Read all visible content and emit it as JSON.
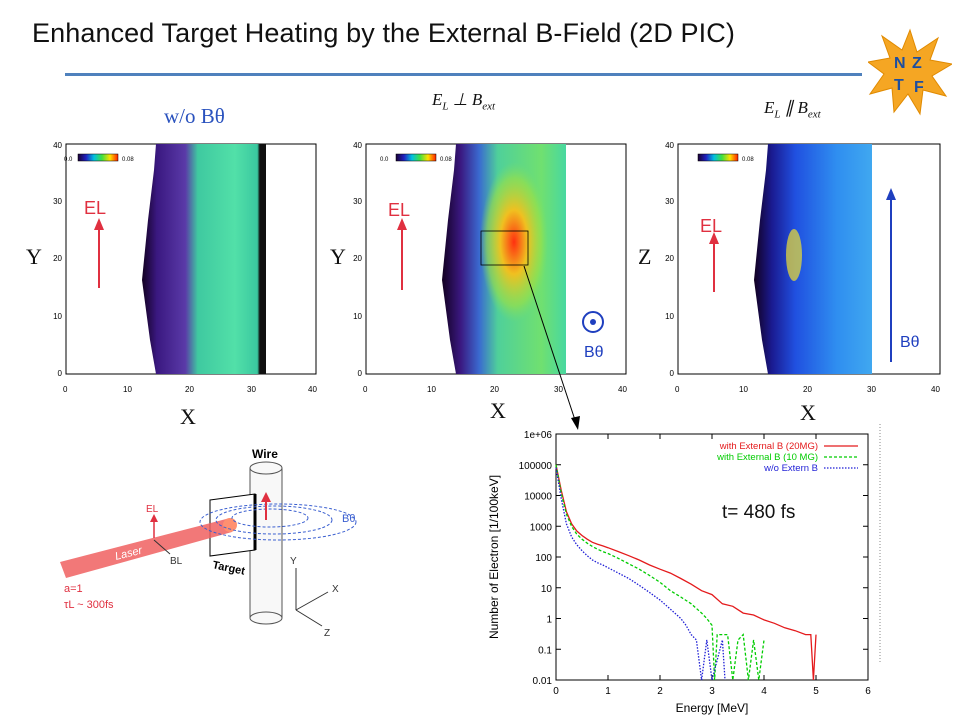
{
  "header": {
    "title": "Enhanced Target Heating by the External B-Field (2D PIC)",
    "logo_letters": [
      "N",
      "Z",
      "T",
      "F"
    ]
  },
  "panels": [
    {
      "caption": "w/o Bθ",
      "ylabel": "Y",
      "xlabel": "X",
      "colorbar_min": "0.0",
      "colorbar_max": "0.08",
      "field_label": "EL",
      "x_ticks": [
        "0",
        "10",
        "20",
        "30",
        "40"
      ],
      "y_ticks": [
        "0",
        "10",
        "20",
        "30",
        "40"
      ]
    },
    {
      "caption_main": "E",
      "caption_sub1": "L",
      "caption_op": " ⊥ B",
      "caption_sub2": "ext",
      "ylabel": "Y",
      "xlabel": "X",
      "colorbar_min": "0.0",
      "colorbar_max": "0.08",
      "field_label": "EL",
      "b_label": "Bθ",
      "x_ticks": [
        "0",
        "10",
        "20",
        "30",
        "40"
      ],
      "y_ticks": [
        "0",
        "10",
        "20",
        "30",
        "40"
      ]
    },
    {
      "caption_main": "E",
      "caption_sub1": "L",
      "caption_op": " ∥ B",
      "caption_sub2": "ext",
      "ylabel": "Z",
      "xlabel": "X",
      "colorbar_max": "0.08",
      "field_label": "EL",
      "b_label": "Bθ",
      "x_ticks": [
        "0",
        "10",
        "20",
        "30",
        "40"
      ],
      "y_ticks": [
        "0",
        "10",
        "20",
        "30",
        "40"
      ]
    }
  ],
  "schematic": {
    "wire": "Wire",
    "target": "Target",
    "laser": "Laser",
    "el": "EL",
    "bl": "BL",
    "btheta": "Bθ",
    "param1": "a=1",
    "param2": "τL ~ 300fs",
    "axis_y": "Y",
    "axis_x": "X",
    "axis_z": "Z"
  },
  "colors": {
    "title_rule": "#4f81bd",
    "red_series": "#e41a1c",
    "green_series": "#00cc00",
    "blue_series": "#1f1fd6"
  },
  "chart_data": {
    "type": "line",
    "xlabel": "Energy [MeV]",
    "ylabel": "Number of Electron [1/100keV]",
    "xlim": [
      0,
      6
    ],
    "ylim": [
      0.01,
      1000000
    ],
    "log_y": true,
    "x_ticks": [
      0,
      1,
      2,
      3,
      4,
      5,
      6
    ],
    "y_ticks": [
      "1e+06",
      "100000",
      "10000",
      "1000",
      "100",
      "10",
      "1",
      "0.1",
      "0.01"
    ],
    "legend_position": "top-right",
    "annotation": "t= 480 fs",
    "series": [
      {
        "name": "with External B (20MG)",
        "color": "#e41a1c",
        "points": [
          [
            0,
            100000
          ],
          [
            0.1,
            15000
          ],
          [
            0.2,
            3000
          ],
          [
            0.3,
            1200
          ],
          [
            0.4,
            700
          ],
          [
            0.5,
            500
          ],
          [
            0.6,
            380
          ],
          [
            0.7,
            300
          ],
          [
            0.8,
            260
          ],
          [
            0.9,
            230
          ],
          [
            1.0,
            200
          ],
          [
            1.2,
            150
          ],
          [
            1.4,
            110
          ],
          [
            1.6,
            80
          ],
          [
            1.8,
            55
          ],
          [
            2.0,
            40
          ],
          [
            2.2,
            30
          ],
          [
            2.4,
            20
          ],
          [
            2.6,
            13
          ],
          [
            2.8,
            8
          ],
          [
            3.0,
            6
          ],
          [
            3.2,
            3
          ],
          [
            3.4,
            2.5
          ],
          [
            3.6,
            1.5
          ],
          [
            3.8,
            1.3
          ],
          [
            4.0,
            0.9
          ],
          [
            4.2,
            0.7
          ],
          [
            4.4,
            0.5
          ],
          [
            4.6,
            0.4
          ],
          [
            4.8,
            0.3
          ],
          [
            4.9,
            0.3
          ],
          [
            4.95,
            0.01
          ],
          [
            5.0,
            0.3
          ]
        ]
      },
      {
        "name": "with External B (10 MG)",
        "color": "#00cc00",
        "points": [
          [
            0,
            100000
          ],
          [
            0.1,
            12000
          ],
          [
            0.2,
            2500
          ],
          [
            0.3,
            1000
          ],
          [
            0.4,
            550
          ],
          [
            0.5,
            380
          ],
          [
            0.6,
            280
          ],
          [
            0.7,
            220
          ],
          [
            0.8,
            180
          ],
          [
            0.9,
            150
          ],
          [
            1.0,
            130
          ],
          [
            1.2,
            90
          ],
          [
            1.4,
            60
          ],
          [
            1.6,
            40
          ],
          [
            1.8,
            25
          ],
          [
            2.0,
            15
          ],
          [
            2.2,
            8
          ],
          [
            2.4,
            5
          ],
          [
            2.6,
            3
          ],
          [
            2.8,
            1.5
          ],
          [
            2.9,
            1
          ],
          [
            3.0,
            0.6
          ],
          [
            3.05,
            0.01
          ],
          [
            3.1,
            0.3
          ],
          [
            3.3,
            0.3
          ],
          [
            3.4,
            0.01
          ],
          [
            3.5,
            0.2
          ],
          [
            3.6,
            0.3
          ],
          [
            3.7,
            0.01
          ],
          [
            3.8,
            0.2
          ],
          [
            3.9,
            0.01
          ],
          [
            4.0,
            0.2
          ]
        ]
      },
      {
        "name": "w/o Extern B",
        "color": "#1f1fd6",
        "points": [
          [
            0,
            80000
          ],
          [
            0.1,
            8000
          ],
          [
            0.2,
            1200
          ],
          [
            0.3,
            450
          ],
          [
            0.4,
            250
          ],
          [
            0.5,
            160
          ],
          [
            0.6,
            110
          ],
          [
            0.7,
            80
          ],
          [
            0.8,
            65
          ],
          [
            0.9,
            55
          ],
          [
            1.0,
            45
          ],
          [
            1.2,
            30
          ],
          [
            1.4,
            20
          ],
          [
            1.6,
            12
          ],
          [
            1.8,
            7
          ],
          [
            2.0,
            4
          ],
          [
            2.2,
            2
          ],
          [
            2.4,
            1
          ],
          [
            2.5,
            0.6
          ],
          [
            2.6,
            0.3
          ],
          [
            2.7,
            0.2
          ],
          [
            2.8,
            0.01
          ],
          [
            2.9,
            0.2
          ],
          [
            3.0,
            0.01
          ],
          [
            3.2,
            0.2
          ],
          [
            3.25,
            0.01
          ]
        ]
      }
    ]
  }
}
